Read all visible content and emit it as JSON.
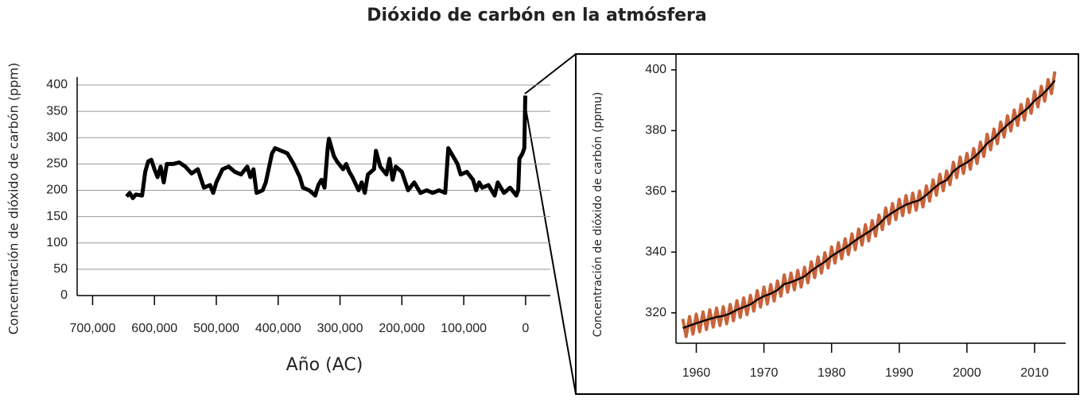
{
  "chart_data": [
    {
      "type": "line",
      "title": "Dióxido de carbón en la atmósfera",
      "x_label": "Año (AC)",
      "y_label": "Concentración de dióxido de carbón (ppm)",
      "xlim": [
        725000,
        -40000
      ],
      "ylim": [
        0,
        400
      ],
      "xticks": [
        {
          "value": 700000,
          "label": "700,000"
        },
        {
          "value": 600000,
          "label": "600,000"
        },
        {
          "value": 500000,
          "label": "500,000"
        },
        {
          "value": 400000,
          "label": "400,000"
        },
        {
          "value": 300000,
          "label": "300,000"
        },
        {
          "value": 200000,
          "label": "200,000"
        },
        {
          "value": 100000,
          "label": "100,000"
        },
        0
      ],
      "yticks": [
        0,
        50,
        100,
        150,
        200,
        250,
        300,
        350,
        400
      ],
      "grid": true,
      "series": [
        {
          "color": "#000000",
          "x": [
            645000,
            640000,
            635000,
            630000,
            620000,
            615000,
            610000,
            605000,
            600000,
            595000,
            590000,
            585000,
            580000,
            570000,
            560000,
            550000,
            540000,
            530000,
            520000,
            510000,
            505000,
            500000,
            490000,
            480000,
            470000,
            460000,
            450000,
            445000,
            440000,
            435000,
            425000,
            420000,
            410000,
            405000,
            395000,
            385000,
            375000,
            365000,
            360000,
            350000,
            340000,
            335000,
            330000,
            325000,
            320000,
            318000,
            310000,
            305000,
            295000,
            290000,
            285000,
            280000,
            270000,
            265000,
            260000,
            255000,
            245000,
            242000,
            235000,
            225000,
            220000,
            215000,
            210000,
            200000,
            190000,
            180000,
            170000,
            160000,
            150000,
            140000,
            130000,
            125000,
            120000,
            110000,
            105000,
            95000,
            85000,
            80000,
            75000,
            70000,
            60000,
            50000,
            45000,
            35000,
            25000,
            15000,
            12000,
            10000,
            5000,
            2000,
            500
          ],
          "values": [
            188,
            195,
            185,
            192,
            190,
            235,
            255,
            258,
            240,
            225,
            245,
            215,
            250,
            250,
            253,
            245,
            232,
            240,
            205,
            210,
            195,
            215,
            240,
            245,
            235,
            230,
            245,
            225,
            240,
            195,
            200,
            215,
            270,
            280,
            275,
            270,
            250,
            225,
            205,
            200,
            190,
            210,
            220,
            205,
            280,
            298,
            265,
            255,
            240,
            250,
            235,
            225,
            200,
            215,
            195,
            230,
            240,
            275,
            245,
            230,
            260,
            220,
            245,
            235,
            200,
            215,
            195,
            200,
            195,
            200,
            195,
            280,
            270,
            250,
            230,
            235,
            220,
            200,
            215,
            205,
            210,
            190,
            215,
            195,
            205,
            190,
            200,
            260,
            270,
            280,
            380
          ]
        }
      ]
    },
    {
      "type": "line",
      "y_label": "Concentración de dióxido de carbón (ppmu)",
      "xlim": [
        1957,
        2014.6
      ],
      "ylim": [
        310,
        402.6
      ],
      "xticks": [
        1960,
        1970,
        1980,
        1990,
        2000,
        2010
      ],
      "yticks": [
        320,
        340,
        360,
        380,
        400
      ],
      "grid": false,
      "series": [
        {
          "color": "#c8643c",
          "x": [
            1958,
            1958.5,
            1959,
            1959.5,
            1960,
            1960.5,
            1961,
            1961.5,
            1962,
            1962.5,
            1963,
            1963.5,
            1964,
            1964.5,
            1965,
            1965.5,
            1966,
            1966.5,
            1967,
            1967.5,
            1968,
            1968.5,
            1969,
            1969.5,
            1970,
            1970.5,
            1971,
            1971.5,
            1972,
            1972.5,
            1973,
            1973.5,
            1974,
            1974.5,
            1975,
            1975.5,
            1976,
            1976.5,
            1977,
            1977.5,
            1978,
            1978.5,
            1979,
            1979.5,
            1980,
            1980.5,
            1981,
            1981.5,
            1982,
            1982.5,
            1983,
            1983.5,
            1984,
            1984.5,
            1985,
            1985.5,
            1986,
            1986.5,
            1987,
            1987.5,
            1988,
            1988.5,
            1989,
            1989.5,
            1990,
            1990.5,
            1991,
            1991.5,
            1992,
            1992.5,
            1993,
            1993.5,
            1994,
            1994.5,
            1995,
            1995.5,
            1996,
            1996.5,
            1997,
            1997.5,
            1998,
            1998.5,
            1999,
            1999.5,
            2000,
            2000.5,
            2001,
            2001.5,
            2002,
            2002.5,
            2003,
            2003.5,
            2004,
            2004.5,
            2005,
            2005.5,
            2006,
            2006.5,
            2007,
            2007.5,
            2008,
            2008.5,
            2009,
            2009.5,
            2010,
            2010.5,
            2011,
            2011.5,
            2012,
            2012.5,
            2013
          ],
          "values": [
            318.0,
            312.2,
            318.8,
            313.0,
            319.6,
            313.8,
            320.3,
            314.5,
            321.0,
            315.3,
            321.6,
            315.8,
            322.0,
            316.4,
            322.8,
            317.4,
            324.0,
            318.5,
            324.9,
            319.4,
            325.8,
            320.6,
            327.3,
            321.9,
            328.5,
            322.9,
            329.3,
            323.9,
            330.5,
            325.5,
            332.5,
            326.8,
            333.1,
            327.6,
            334.0,
            328.5,
            335.0,
            329.9,
            336.8,
            331.6,
            338.4,
            333.1,
            339.8,
            334.8,
            341.7,
            336.4,
            343.1,
            337.8,
            344.4,
            339.2,
            346.0,
            340.8,
            347.6,
            342.3,
            349.0,
            343.7,
            350.4,
            345.3,
            352.2,
            347.4,
            354.5,
            349.3,
            356.0,
            350.7,
            357.4,
            352.0,
            358.6,
            353.0,
            359.4,
            353.8,
            360.1,
            354.9,
            361.8,
            356.8,
            363.8,
            358.7,
            365.6,
            360.2,
            366.7,
            362.2,
            369.6,
            364.5,
            371.3,
            365.9,
            372.5,
            367.3,
            374.1,
            369.2,
            376.2,
            371.5,
            378.8,
            373.7,
            380.5,
            375.7,
            382.8,
            377.9,
            384.9,
            379.9,
            386.8,
            381.7,
            388.6,
            383.5,
            390.4,
            385.7,
            392.9,
            387.8,
            394.6,
            389.7,
            396.8,
            392.2,
            399.5
          ]
        },
        {
          "color": "#000000",
          "x": [
            1958,
            1959,
            1960,
            1961,
            1962,
            1963,
            1964,
            1965,
            1966,
            1967,
            1968,
            1969,
            1970,
            1971,
            1972,
            1973,
            1974,
            1975,
            1976,
            1977,
            1978,
            1979,
            1980,
            1981,
            1982,
            1983,
            1984,
            1985,
            1986,
            1987,
            1988,
            1989,
            1990,
            1991,
            1992,
            1993,
            1994,
            1995,
            1996,
            1997,
            1998,
            1999,
            2000,
            2001,
            2002,
            2003,
            2004,
            2005,
            2006,
            2007,
            2008,
            2009,
            2010,
            2011,
            2012,
            2013
          ],
          "values": [
            315.0,
            315.8,
            316.6,
            317.3,
            318.0,
            318.6,
            319.0,
            319.8,
            321.0,
            321.9,
            322.8,
            324.3,
            325.5,
            326.3,
            327.5,
            329.5,
            330.1,
            331.0,
            332.0,
            333.8,
            335.4,
            336.8,
            338.7,
            340.1,
            341.4,
            343.0,
            344.6,
            346.0,
            347.4,
            349.2,
            351.5,
            353.0,
            354.4,
            355.6,
            356.4,
            357.1,
            358.8,
            360.8,
            362.6,
            363.7,
            366.6,
            368.3,
            369.5,
            371.1,
            373.2,
            375.8,
            377.5,
            379.8,
            381.9,
            383.8,
            385.6,
            387.4,
            389.9,
            391.6,
            393.8,
            396.5
          ]
        }
      ]
    }
  ]
}
